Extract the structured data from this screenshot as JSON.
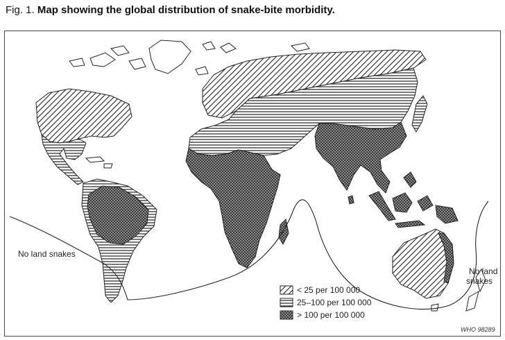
{
  "figure": {
    "label": "Fig. 1.",
    "title": "Map showing the global distribution of snake-bite morbidity."
  },
  "map": {
    "annotations": {
      "no_land_snakes_west": "No land snakes",
      "no_land_snakes_east_line1": "No land",
      "no_land_snakes_east_line2": "snakes"
    },
    "legend": [
      {
        "label": "< 25 per 100 000",
        "pattern": "diagonal-hatch"
      },
      {
        "label": "25–100 per 100 000",
        "pattern": "horizontal-lines"
      },
      {
        "label": "> 100 per 100 000",
        "pattern": "dark-dotted"
      }
    ],
    "credit": "WHO 98289",
    "colors": {
      "ink": "#222222",
      "background": "#ffffff",
      "dark_fill": "#3a3a3a"
    }
  }
}
